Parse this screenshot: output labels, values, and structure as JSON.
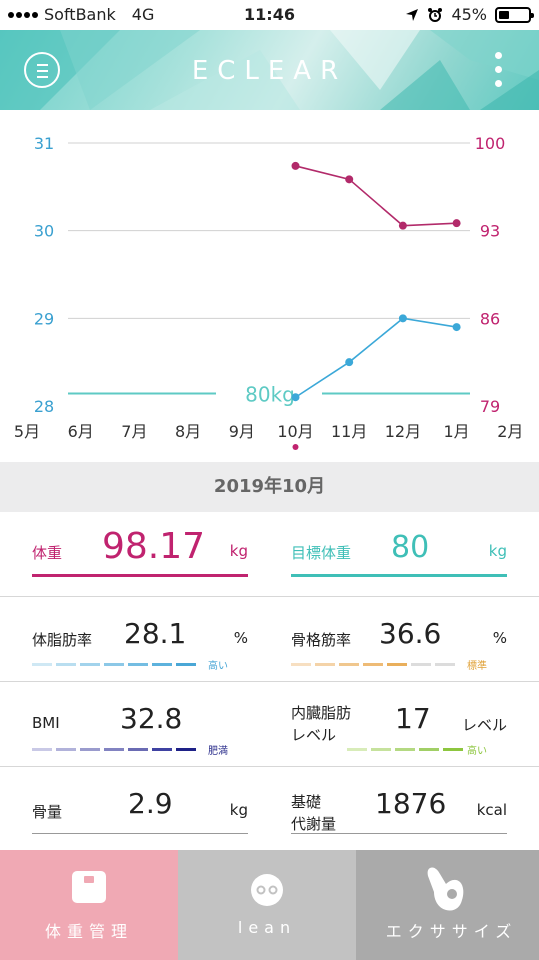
{
  "status_bar": {
    "carrier": "SoftBank",
    "network": "4G",
    "time": "11:46",
    "battery": "45%",
    "battery_level": 0.45
  },
  "header": {
    "logo": "ECLEAR",
    "menu_icon": "hamburger-icon",
    "more_icon": "kebab-icon"
  },
  "chart_data": {
    "type": "line",
    "categories": [
      "5月",
      "6月",
      "7月",
      "8月",
      "9月",
      "10月",
      "11月",
      "12月",
      "1月",
      "2月"
    ],
    "left_axis": {
      "ticks": [
        "28",
        "29",
        "30",
        "31"
      ],
      "ylim": [
        28,
        31
      ],
      "color": "#3aa0d0"
    },
    "right_axis": {
      "ticks": [
        "79",
        "86",
        "93",
        "100"
      ],
      "ylim": [
        79,
        100
      ],
      "color": "#c0236f"
    },
    "series": [
      {
        "axis": "right",
        "color": "#b22a6a",
        "values": [
          null,
          null,
          null,
          null,
          null,
          98.17,
          97.1,
          93.4,
          93.6,
          null
        ]
      },
      {
        "axis": "left",
        "color": "#3ba8d8",
        "values": [
          null,
          null,
          null,
          null,
          null,
          28.1,
          28.5,
          29.0,
          28.9,
          null
        ]
      }
    ],
    "target_line": {
      "label": "80kg",
      "value": 80,
      "axis": "right",
      "color": "#5ecac4"
    },
    "selected_index": 5,
    "grid": true
  },
  "date_bar": {
    "label": "2019年10月"
  },
  "metrics": {
    "weight": {
      "label": "体重",
      "value": "98.17",
      "unit": "kg"
    },
    "target": {
      "label": "目標体重",
      "value": "80",
      "unit": "kg"
    },
    "body_fat": {
      "label": "体脂肪率",
      "value": "28.1",
      "unit": "%",
      "tag": "高い",
      "tag_color": "#4aa7d6"
    },
    "muscle": {
      "label": "骨格筋率",
      "value": "36.6",
      "unit": "%",
      "tag": "標準",
      "tag_color": "#e0a33b"
    },
    "bmi": {
      "label": "BMI",
      "value": "32.8",
      "unit": "",
      "tag": "肥満",
      "tag_color": "#2c2f8c"
    },
    "visceral": {
      "label_line1": "内臓脂肪",
      "label_line2": "レベル",
      "value": "17",
      "unit": "レベル",
      "tag": "高い",
      "tag_color": "#8dc63f"
    },
    "bone": {
      "label": "骨量",
      "value": "2.9",
      "unit": "kg"
    },
    "bmr": {
      "label_line1": "基礎",
      "label_line2": "代謝量",
      "value": "1876",
      "unit": "kcal"
    }
  },
  "nav": {
    "tabs": [
      {
        "label": "体重管理",
        "icon": "scale-icon",
        "color": "#f0a9b4",
        "active": true
      },
      {
        "label": "lean",
        "icon": "face-icon",
        "color": "#c2c2c2",
        "active": false
      },
      {
        "label": "エクササイズ",
        "icon": "hand-icon",
        "color": "#aaaaaa",
        "active": false
      }
    ]
  }
}
